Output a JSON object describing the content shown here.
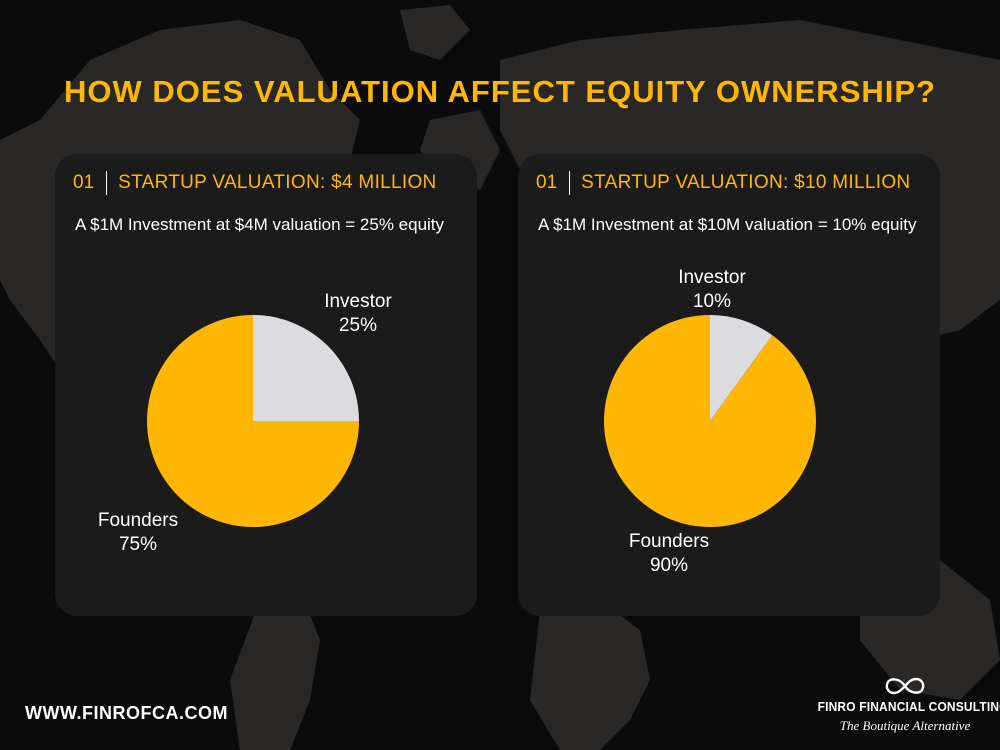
{
  "page": {
    "title": "HOW DOES VALUATION AFFECT EQUITY OWNERSHIP?",
    "accent_color": "#ffb703",
    "background_color": "#0b0b0b"
  },
  "cards": [
    {
      "number": "01",
      "heading": "STARTUP VALUATION: $4 MILLION",
      "description": "A $1M Investment at $4M valuation = 25% equity",
      "investor_label": "Investor",
      "investor_pct": "25%",
      "founders_label": "Founders",
      "founders_pct": "75%"
    },
    {
      "number": "01",
      "heading": "STARTUP VALUATION: $10 MILLION",
      "description": "A $1M Investment at $10M valuation = 10% equity",
      "investor_label": "Investor",
      "investor_pct": "10%",
      "founders_label": "Founders",
      "founders_pct": "90%"
    }
  ],
  "chart_data": [
    {
      "type": "pie",
      "categories": [
        "Investor",
        "Founders"
      ],
      "values": [
        25,
        75
      ],
      "colors": [
        "#dcdce0",
        "#ffb703"
      ]
    },
    {
      "type": "pie",
      "categories": [
        "Investor",
        "Founders"
      ],
      "values": [
        10,
        90
      ],
      "colors": [
        "#dcdce0",
        "#ffb703"
      ]
    }
  ],
  "footer": {
    "url": "WWW.FINROFCA.COM",
    "brand_name": "FINRO FINANCIAL CONSULTING",
    "brand_tagline": "The Boutique Alternative",
    "logo_icon": "infinity-icon"
  }
}
